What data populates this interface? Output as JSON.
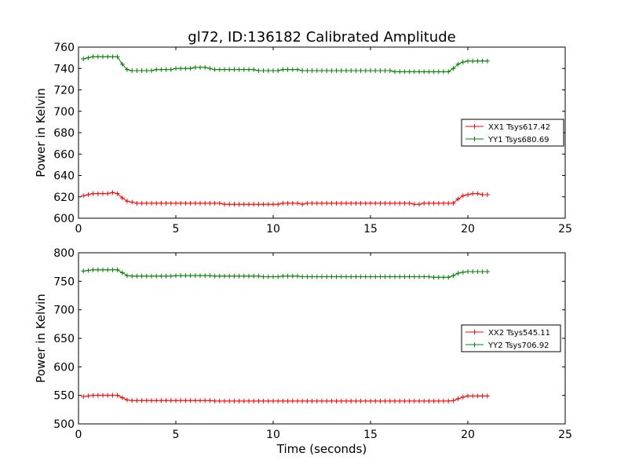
{
  "figure": {
    "title": "gl72, ID:136182 Calibrated Amplitude",
    "xlabel": "Time (seconds)"
  },
  "colors": {
    "xx": "#ff0000",
    "yy": "#008000"
  },
  "chart_data": [
    {
      "type": "line",
      "ylabel": "Power in Kelvin",
      "xlim": [
        0,
        25
      ],
      "ylim": [
        600,
        760
      ],
      "xticks": [
        0,
        5,
        10,
        15,
        20,
        25
      ],
      "yticks": [
        600,
        620,
        640,
        660,
        680,
        700,
        720,
        740,
        760
      ],
      "legend_position": "center-right",
      "series": [
        {
          "name": "XX1 Tsys617.42",
          "color": "#ff0000",
          "x": [
            0.25,
            0.5,
            0.75,
            1.0,
            1.25,
            1.5,
            1.75,
            2.0,
            2.25,
            2.5,
            2.75,
            3.0,
            3.25,
            3.5,
            3.75,
            4.0,
            4.25,
            4.5,
            4.75,
            5.0,
            5.25,
            5.5,
            5.75,
            6.0,
            6.25,
            6.5,
            6.75,
            7.0,
            7.25,
            7.5,
            7.75,
            8.0,
            8.25,
            8.5,
            8.75,
            9.0,
            9.25,
            9.5,
            9.75,
            10.0,
            10.25,
            10.5,
            10.75,
            11.0,
            11.25,
            11.5,
            11.75,
            12.0,
            12.25,
            12.5,
            12.75,
            13.0,
            13.25,
            13.5,
            13.75,
            14.0,
            14.25,
            14.5,
            14.75,
            15.0,
            15.25,
            15.5,
            15.75,
            16.0,
            16.25,
            16.5,
            16.75,
            17.0,
            17.25,
            17.5,
            17.75,
            18.0,
            18.25,
            18.5,
            18.75,
            19.0,
            19.25,
            19.5,
            19.75,
            20.0,
            20.25,
            20.5,
            20.75,
            21.0
          ],
          "y": [
            621,
            622,
            623,
            623,
            623,
            623,
            624,
            623,
            619,
            616,
            615,
            614,
            614,
            614,
            614,
            614,
            614,
            614,
            614,
            614,
            614,
            614,
            614,
            614,
            614,
            614,
            614,
            614,
            614,
            613,
            613,
            613,
            613,
            613,
            613,
            613,
            613,
            613,
            613,
            613,
            613,
            614,
            614,
            614,
            614,
            613,
            614,
            614,
            614,
            614,
            614,
            614,
            614,
            614,
            614,
            614,
            614,
            614,
            614,
            614,
            614,
            614,
            614,
            614,
            614,
            614,
            614,
            614,
            613,
            613,
            614,
            614,
            614,
            614,
            614,
            614,
            614,
            618,
            621,
            622,
            623,
            623,
            622,
            622
          ]
        },
        {
          "name": "YY1 Tsys680.69",
          "color": "#008000",
          "x": [
            0.25,
            0.5,
            0.75,
            1.0,
            1.25,
            1.5,
            1.75,
            2.0,
            2.25,
            2.5,
            2.75,
            3.0,
            3.25,
            3.5,
            3.75,
            4.0,
            4.25,
            4.5,
            4.75,
            5.0,
            5.25,
            5.5,
            5.75,
            6.0,
            6.25,
            6.5,
            6.75,
            7.0,
            7.25,
            7.5,
            7.75,
            8.0,
            8.25,
            8.5,
            8.75,
            9.0,
            9.25,
            9.5,
            9.75,
            10.0,
            10.25,
            10.5,
            10.75,
            11.0,
            11.25,
            11.5,
            11.75,
            12.0,
            12.25,
            12.5,
            12.75,
            13.0,
            13.25,
            13.5,
            13.75,
            14.0,
            14.25,
            14.5,
            14.75,
            15.0,
            15.25,
            15.5,
            15.75,
            16.0,
            16.25,
            16.5,
            16.75,
            17.0,
            17.25,
            17.5,
            17.75,
            18.0,
            18.25,
            18.5,
            18.75,
            19.0,
            19.25,
            19.5,
            19.75,
            20.0,
            20.25,
            20.5,
            20.75,
            21.0
          ],
          "y": [
            749,
            750,
            751,
            751,
            751,
            751,
            751,
            751,
            744,
            739,
            738,
            738,
            738,
            738,
            738,
            739,
            739,
            739,
            739,
            740,
            740,
            740,
            740,
            741,
            741,
            741,
            740,
            739,
            739,
            739,
            739,
            739,
            739,
            739,
            739,
            739,
            738,
            738,
            738,
            738,
            738,
            739,
            739,
            739,
            739,
            738,
            738,
            738,
            738,
            738,
            738,
            738,
            738,
            738,
            738,
            738,
            738,
            738,
            738,
            738,
            738,
            738,
            738,
            738,
            737,
            737,
            737,
            737,
            737,
            737,
            737,
            737,
            737,
            737,
            737,
            737,
            740,
            744,
            746,
            747,
            747,
            747,
            747,
            747
          ]
        }
      ]
    },
    {
      "type": "line",
      "ylabel": "Power in Kelvin",
      "xlim": [
        0,
        25
      ],
      "ylim": [
        500,
        800
      ],
      "xticks": [
        0,
        5,
        10,
        15,
        20,
        25
      ],
      "yticks": [
        500,
        550,
        600,
        650,
        700,
        750,
        800
      ],
      "legend_position": "center-right",
      "series": [
        {
          "name": "XX2 Tsys545.11",
          "color": "#ff0000",
          "x": [
            0.25,
            0.5,
            0.75,
            1.0,
            1.25,
            1.5,
            1.75,
            2.0,
            2.25,
            2.5,
            2.75,
            3.0,
            3.25,
            3.5,
            3.75,
            4.0,
            4.25,
            4.5,
            4.75,
            5.0,
            5.25,
            5.5,
            5.75,
            6.0,
            6.25,
            6.5,
            6.75,
            7.0,
            7.25,
            7.5,
            7.75,
            8.0,
            8.25,
            8.5,
            8.75,
            9.0,
            9.25,
            9.5,
            9.75,
            10.0,
            10.25,
            10.5,
            10.75,
            11.0,
            11.25,
            11.5,
            11.75,
            12.0,
            12.25,
            12.5,
            12.75,
            13.0,
            13.25,
            13.5,
            13.75,
            14.0,
            14.25,
            14.5,
            14.75,
            15.0,
            15.25,
            15.5,
            15.75,
            16.0,
            16.25,
            16.5,
            16.75,
            17.0,
            17.25,
            17.5,
            17.75,
            18.0,
            18.25,
            18.5,
            18.75,
            19.0,
            19.25,
            19.5,
            19.75,
            20.0,
            20.25,
            20.5,
            20.75,
            21.0
          ],
          "y": [
            548,
            549,
            550,
            550,
            550,
            550,
            550,
            550,
            546,
            542,
            541,
            541,
            541,
            541,
            541,
            541,
            541,
            541,
            541,
            541,
            541,
            541,
            541,
            541,
            541,
            541,
            541,
            540,
            540,
            540,
            540,
            540,
            540,
            540,
            540,
            540,
            540,
            540,
            540,
            540,
            540,
            540,
            540,
            540,
            540,
            540,
            540,
            540,
            540,
            540,
            540,
            540,
            540,
            540,
            540,
            540,
            540,
            540,
            540,
            540,
            540,
            540,
            540,
            540,
            540,
            540,
            540,
            540,
            540,
            540,
            540,
            540,
            540,
            540,
            540,
            540,
            541,
            544,
            547,
            549,
            549,
            549,
            549,
            549
          ]
        },
        {
          "name": "YY2 Tsys706.92",
          "color": "#008000",
          "x": [
            0.25,
            0.5,
            0.75,
            1.0,
            1.25,
            1.5,
            1.75,
            2.0,
            2.25,
            2.5,
            2.75,
            3.0,
            3.25,
            3.5,
            3.75,
            4.0,
            4.25,
            4.5,
            4.75,
            5.0,
            5.25,
            5.5,
            5.75,
            6.0,
            6.25,
            6.5,
            6.75,
            7.0,
            7.25,
            7.5,
            7.75,
            8.0,
            8.25,
            8.5,
            8.75,
            9.0,
            9.25,
            9.5,
            9.75,
            10.0,
            10.25,
            10.5,
            10.75,
            11.0,
            11.25,
            11.5,
            11.75,
            12.0,
            12.25,
            12.5,
            12.75,
            13.0,
            13.25,
            13.5,
            13.75,
            14.0,
            14.25,
            14.5,
            14.75,
            15.0,
            15.25,
            15.5,
            15.75,
            16.0,
            16.25,
            16.5,
            16.75,
            17.0,
            17.25,
            17.5,
            17.75,
            18.0,
            18.25,
            18.5,
            18.75,
            19.0,
            19.25,
            19.5,
            19.75,
            20.0,
            20.25,
            20.5,
            20.75,
            21.0
          ],
          "y": [
            768,
            769,
            770,
            770,
            770,
            770,
            770,
            770,
            765,
            760,
            759,
            759,
            759,
            759,
            759,
            759,
            759,
            759,
            759,
            760,
            760,
            760,
            760,
            760,
            760,
            760,
            760,
            759,
            759,
            759,
            759,
            759,
            759,
            759,
            759,
            759,
            759,
            758,
            758,
            758,
            758,
            759,
            759,
            759,
            759,
            758,
            758,
            758,
            758,
            758,
            758,
            758,
            758,
            758,
            758,
            758,
            758,
            758,
            758,
            758,
            758,
            758,
            758,
            758,
            758,
            758,
            758,
            758,
            758,
            758,
            758,
            758,
            757,
            757,
            757,
            757,
            760,
            764,
            766,
            767,
            767,
            767,
            767,
            767
          ]
        }
      ]
    }
  ]
}
